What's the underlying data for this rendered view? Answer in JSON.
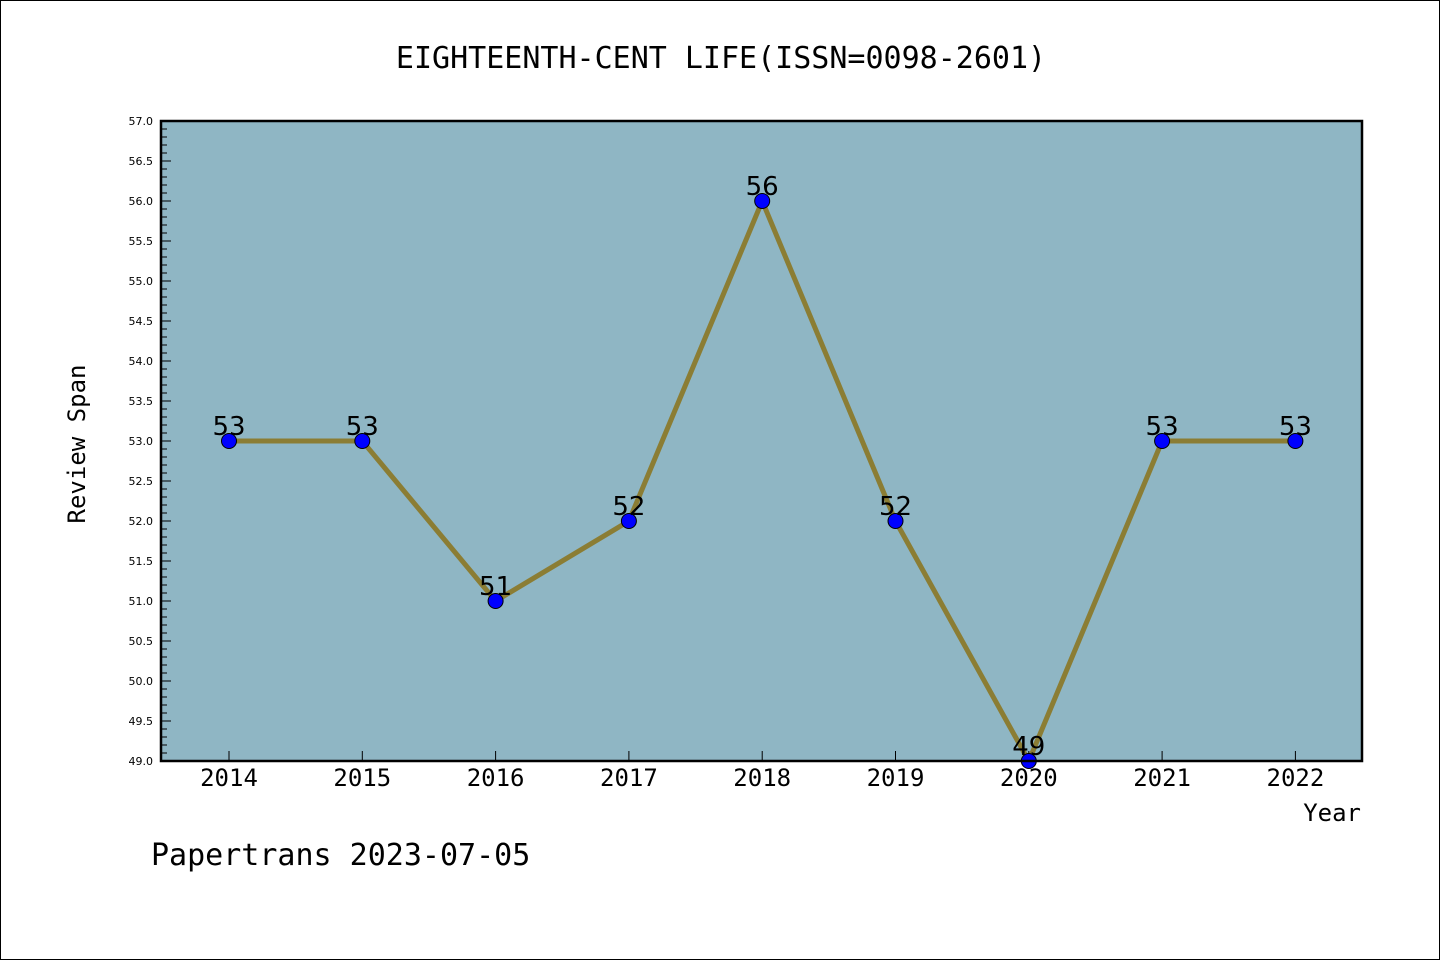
{
  "chart_data": {
    "type": "line",
    "title": "EIGHTEENTH-CENT LIFE(ISSN=0098-2601)",
    "xlabel": "Year",
    "ylabel": "Review Span",
    "categories": [
      "2014",
      "2015",
      "2016",
      "2017",
      "2018",
      "2019",
      "2020",
      "2021",
      "2022"
    ],
    "series": [
      {
        "values": [
          53,
          53,
          51,
          52,
          56,
          52,
          49,
          53,
          53
        ]
      }
    ],
    "data_labels": [
      "53",
      "53",
      "51",
      "52",
      "56",
      "52",
      "49",
      "53",
      "53"
    ],
    "ylim": [
      49.0,
      57.0
    ],
    "y_ticks": [
      "49.0",
      "49.5",
      "50.0",
      "50.5",
      "51.0",
      "51.5",
      "52.0",
      "52.5",
      "53.0",
      "53.5",
      "54.0",
      "54.5",
      "55.0",
      "55.5",
      "56.0",
      "56.5",
      "57.0"
    ],
    "grid": false,
    "legend": "none",
    "colors": {
      "plot_background": "#8fb6c4",
      "line": "#8b7d34",
      "marker": "#0000ff"
    }
  },
  "footer": {
    "watermark": "Papertrans 2023-07-05"
  }
}
